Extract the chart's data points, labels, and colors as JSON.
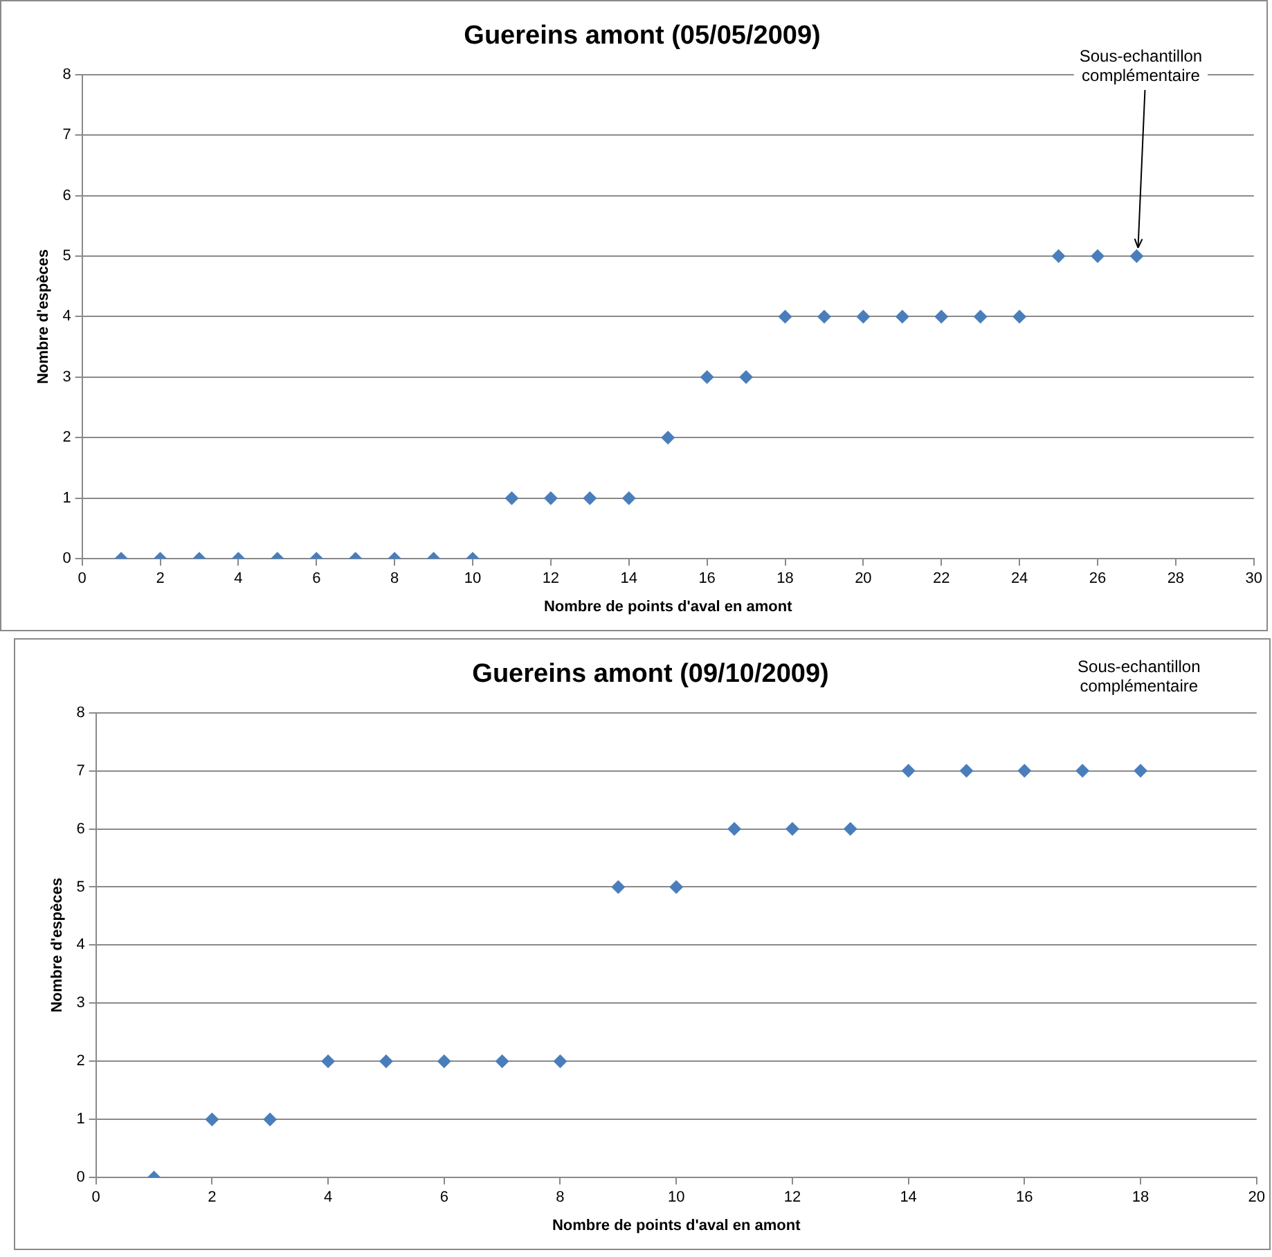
{
  "chart_data": [
    {
      "type": "scatter",
      "title": "Guereins amont (05/05/2009)",
      "xlabel": "Nombre de points d'aval en amont",
      "ylabel": "Nombre d'espèces",
      "series": [
        {
          "color": "#4a7ebb",
          "x": [
            1,
            2,
            3,
            4,
            5,
            6,
            7,
            8,
            9,
            10,
            11,
            12,
            13,
            14,
            15,
            16,
            17,
            18,
            19,
            20,
            21,
            22,
            23,
            24,
            25,
            26,
            27
          ],
          "values": [
            0,
            0,
            0,
            0,
            0,
            0,
            0,
            0,
            0,
            0,
            1,
            1,
            1,
            1,
            2,
            3,
            3,
            4,
            4,
            4,
            4,
            4,
            4,
            4,
            5,
            5,
            5
          ]
        }
      ],
      "xlim": [
        0,
        30
      ],
      "xticks": [
        0,
        2,
        4,
        6,
        8,
        10,
        12,
        14,
        16,
        18,
        20,
        22,
        24,
        26,
        28,
        30
      ],
      "ylim": [
        0,
        8
      ],
      "yticks": [
        0,
        1,
        2,
        3,
        4,
        5,
        6,
        7,
        8
      ],
      "grid": "y",
      "legend": false,
      "marker": "diamond",
      "annotations": [
        {
          "text": "Sous-echantillon complémentaire",
          "x": 27,
          "y": 5
        }
      ]
    },
    {
      "type": "scatter",
      "title": "Guereins amont (09/10/2009)",
      "xlabel": "Nombre de points d'aval en amont",
      "ylabel": "Nombre d'espèces",
      "series": [
        {
          "color": "#4a7ebb",
          "x": [
            1,
            2,
            3,
            4,
            5,
            6,
            7,
            8,
            9,
            10,
            11,
            12,
            13,
            14,
            15,
            16,
            17,
            18
          ],
          "values": [
            0,
            1,
            1,
            2,
            2,
            2,
            2,
            2,
            5,
            5,
            6,
            6,
            6,
            7,
            7,
            7,
            7,
            7
          ]
        }
      ],
      "xlim": [
        0,
        20
      ],
      "xticks": [
        0,
        2,
        4,
        6,
        8,
        10,
        12,
        14,
        16,
        18,
        20
      ],
      "ylim": [
        0,
        8
      ],
      "yticks": [
        0,
        1,
        2,
        3,
        4,
        5,
        6,
        7,
        8
      ],
      "grid": "y",
      "legend": false,
      "marker": "diamond",
      "annotations": [
        "Sous-echantillon complémentaire"
      ]
    }
  ]
}
